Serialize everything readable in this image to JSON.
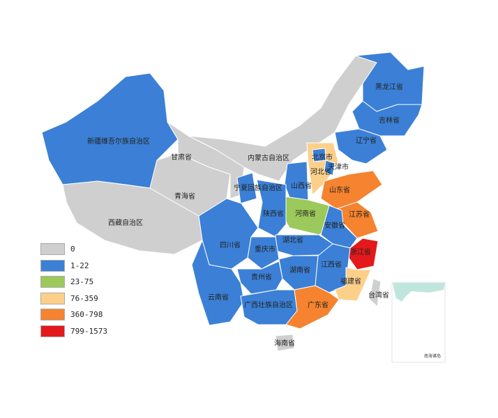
{
  "legend": [
    {
      "label": "0",
      "color": "#cfcfcf"
    },
    {
      "label": "1-22",
      "color": "#3b80d6"
    },
    {
      "label": "23-75",
      "color": "#9cc95b"
    },
    {
      "label": "76-359",
      "color": "#fdd08a"
    },
    {
      "label": "360-798",
      "color": "#f5832f"
    },
    {
      "label": "799-1573",
      "color": "#e3191b"
    }
  ],
  "provinces": {
    "xinjiang": {
      "name": "新疆维吾尔族自治区",
      "bin": 1
    },
    "xizang": {
      "name": "西藏自治区",
      "bin": 0
    },
    "qinghai": {
      "name": "青海省",
      "bin": 0
    },
    "gansu": {
      "name": "甘肃省",
      "bin": 0
    },
    "neimenggu": {
      "name": "内蒙古自治区",
      "bin": 0
    },
    "heilongjiang": {
      "name": "黑龙江省",
      "bin": 1
    },
    "jilin": {
      "name": "吉林省",
      "bin": 1
    },
    "liaoning": {
      "name": "辽宁省",
      "bin": 1
    },
    "ningxia": {
      "name": "宁夏回族自治区",
      "bin": 1
    },
    "shanxi": {
      "name": "山西省",
      "bin": 1
    },
    "hebei": {
      "name": "河北省",
      "bin": 3
    },
    "beijing": {
      "name": "北京市",
      "bin": 1
    },
    "tianjin": {
      "name": "天津市",
      "bin": 1
    },
    "shandong": {
      "name": "山东省",
      "bin": 4
    },
    "henan": {
      "name": "河南省",
      "bin": 2
    },
    "shaanxi": {
      "name": "陕西省",
      "bin": 1
    },
    "jiangsu": {
      "name": "江苏省",
      "bin": 4
    },
    "anhui": {
      "name": "安徽省",
      "bin": 1
    },
    "zhejiang": {
      "name": "浙江省",
      "bin": 5
    },
    "hubei": {
      "name": "湖北省",
      "bin": 1
    },
    "chongqing": {
      "name": "重庆市",
      "bin": 1
    },
    "sichuan": {
      "name": "四川省",
      "bin": 1
    },
    "hunan": {
      "name": "湖南省",
      "bin": 1
    },
    "jiangxi": {
      "name": "江西省",
      "bin": 1
    },
    "fujian": {
      "name": "福建省",
      "bin": 3
    },
    "guizhou": {
      "name": "贵州省",
      "bin": 1
    },
    "yunnan": {
      "name": "云南省",
      "bin": 1
    },
    "guangxi": {
      "name": "广西壮族自治区",
      "bin": 1
    },
    "guangdong": {
      "name": "广东省",
      "bin": 4
    },
    "hainan": {
      "name": "海南省",
      "bin": 0
    },
    "taiwan": {
      "name": "台湾省",
      "bin": 0
    }
  },
  "inset": {
    "label": "南海诸岛",
    "sea_color": "#bfe6dc"
  }
}
